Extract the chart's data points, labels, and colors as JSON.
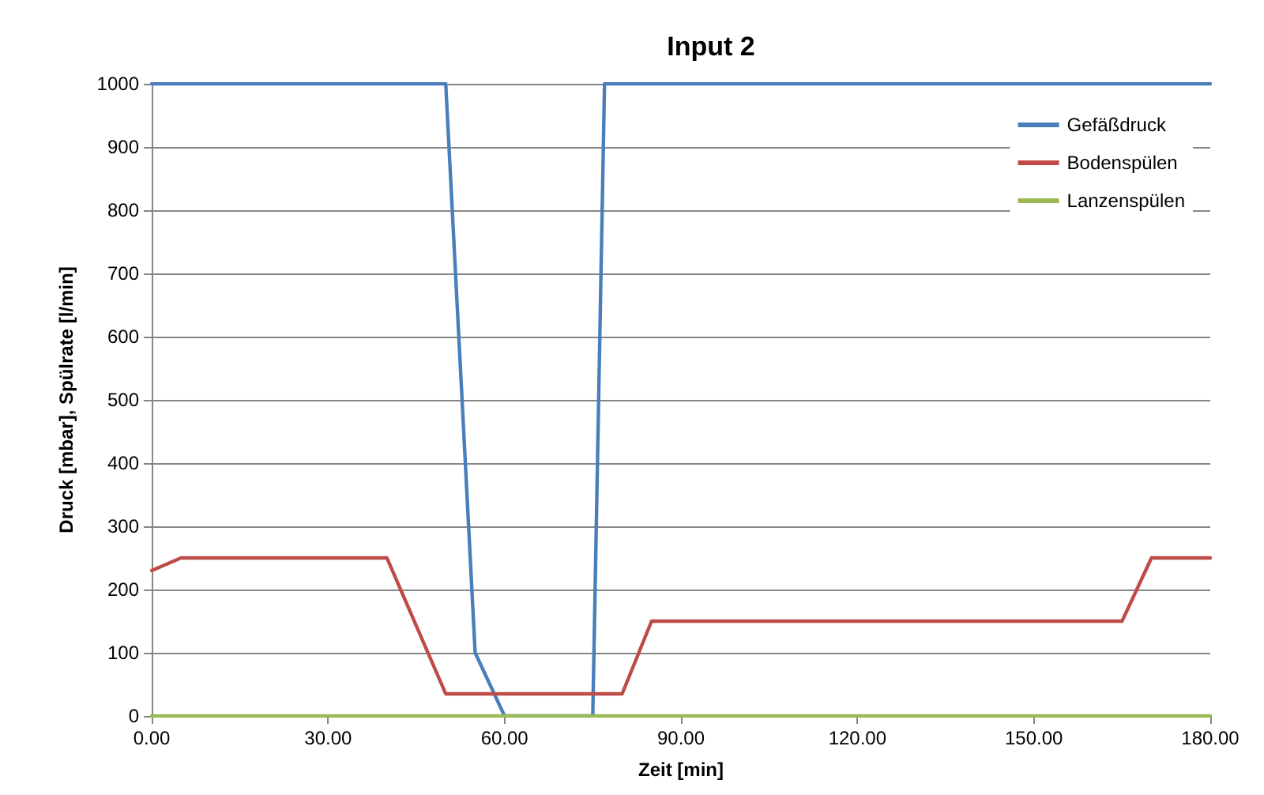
{
  "chart_data": {
    "type": "line",
    "title": "Input 2",
    "xlabel": "Zeit [min]",
    "ylabel": "Druck [mbar], Spülrate [l/min]",
    "series": [
      {
        "name": "Gefäßdruck",
        "color": "#4a7ebb",
        "x": [
          0,
          50,
          55,
          60,
          75,
          77,
          180
        ],
        "values": [
          1000,
          1000,
          100,
          0,
          0,
          1000,
          1000
        ]
      },
      {
        "name": "Bodenspülen",
        "color": "#be4b48",
        "x": [
          0,
          5,
          40,
          50,
          80,
          85,
          165,
          170,
          180
        ],
        "values": [
          230,
          250,
          250,
          35,
          35,
          150,
          150,
          250,
          250
        ]
      },
      {
        "name": "Lanzenspülen",
        "color": "#98b954",
        "x": [
          0,
          180
        ],
        "values": [
          0,
          0
        ]
      }
    ],
    "xlim": [
      0,
      180
    ],
    "xticks": [
      {
        "value": 0,
        "label": "0.00"
      },
      {
        "value": 30,
        "label": "30.00"
      },
      {
        "value": 60,
        "label": "60.00"
      },
      {
        "value": 90,
        "label": "90.00"
      },
      {
        "value": 120,
        "label": "120.00"
      },
      {
        "value": 150,
        "label": "150.00"
      },
      {
        "value": 180,
        "label": "180.00"
      }
    ],
    "ylim": [
      0,
      1000
    ],
    "yticks": [
      0,
      100,
      200,
      300,
      400,
      500,
      600,
      700,
      800,
      900,
      1000
    ],
    "grid": "y",
    "legend": "top right",
    "marker": "none",
    "line_style": "solid"
  }
}
